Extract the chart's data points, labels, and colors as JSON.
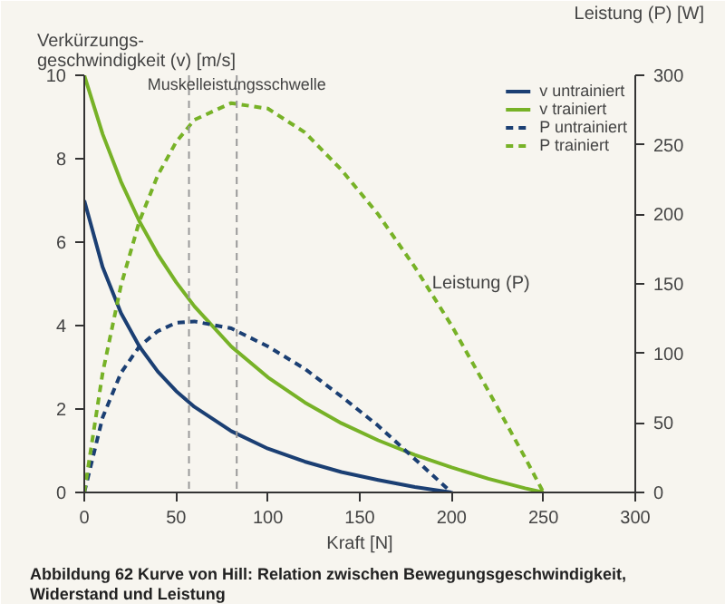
{
  "chart_data": {
    "type": "line",
    "xlabel": "Kraft [N]",
    "ylabel": "Verkürzungs-\ngeschwindigkeit (v) [m/s]",
    "y2label": "Leistung (P) [W]",
    "xlim": [
      0,
      300
    ],
    "xticks": [
      0,
      50,
      100,
      150,
      200,
      250,
      300
    ],
    "ylim": [
      0,
      10
    ],
    "yticks": [
      0,
      2,
      4,
      6,
      8,
      10
    ],
    "y2lim": [
      0,
      300
    ],
    "y2ticks": [
      0,
      50,
      100,
      150,
      200,
      250,
      300
    ],
    "series": [
      {
        "name": "v untrainiert",
        "color": "#1b3f73",
        "line_style": "solid",
        "x": [
          0,
          10,
          20,
          30,
          40,
          50,
          60,
          80,
          100,
          120,
          140,
          160,
          180,
          200
        ],
        "values": [
          7.0,
          5.4,
          4.3,
          3.5,
          2.9,
          2.43,
          2.05,
          1.47,
          1.05,
          0.74,
          0.49,
          0.3,
          0.13,
          0
        ]
      },
      {
        "name": "v trainiert",
        "color": "#77b227",
        "line_style": "solid",
        "x": [
          0,
          10,
          20,
          30,
          40,
          50,
          60,
          80,
          100,
          120,
          140,
          160,
          180,
          200,
          220,
          240,
          250
        ],
        "values": [
          10,
          8.59,
          7.45,
          6.5,
          5.71,
          5.04,
          4.46,
          3.5,
          2.76,
          2.16,
          1.66,
          1.25,
          0.9,
          0.6,
          0.33,
          0.1,
          0
        ]
      },
      {
        "name": "P untrainiert",
        "color": "#1b3f73",
        "line_style": "dashed",
        "axis": "y2",
        "x": [
          0,
          10,
          20,
          30,
          40,
          50,
          60,
          80,
          100,
          120,
          140,
          160,
          180,
          200
        ],
        "values": [
          0,
          54,
          86,
          105,
          116,
          122,
          123,
          118,
          105,
          89,
          69,
          48,
          24,
          0
        ]
      },
      {
        "name": "P trainiert",
        "color": "#77b227",
        "line_style": "dashed",
        "axis": "y2",
        "x": [
          0,
          10,
          20,
          30,
          40,
          50,
          60,
          80,
          100,
          120,
          140,
          160,
          180,
          200,
          220,
          240,
          250
        ],
        "values": [
          0,
          86,
          149,
          195,
          228,
          252,
          268,
          280,
          276,
          259,
          232,
          200,
          162,
          120,
          73,
          25,
          0
        ]
      }
    ],
    "ref_lines": [
      {
        "axis": "x",
        "value": 57,
        "label": null,
        "color": "#999999",
        "line_style": "dashed"
      },
      {
        "axis": "x",
        "value": 83,
        "label": "Muskelleistungsschwelle",
        "color": "#999999",
        "line_style": "dashed"
      }
    ],
    "annotations": [
      "Leistung (P)",
      "Abbildung 62  Kurve von Hill: Relation zwischen Bewegungsgeschwindigkeit, Widerstand und Leistung"
    ],
    "legend": "top right",
    "grid": false,
    "marker": "none"
  }
}
